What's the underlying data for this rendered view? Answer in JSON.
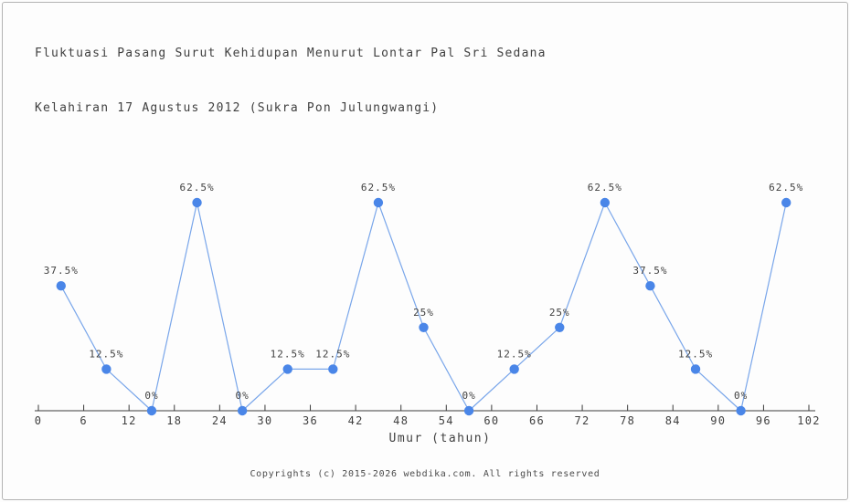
{
  "page": {
    "title_line1": "Fluktuasi Pasang Surut Kehidupan Menurut Lontar Pal Sri Sedana",
    "title_line2": "Kelahiran 17 Agustus 2012 (Sukra Pon Julungwangi)",
    "footer": "Copyrights (c) 2015-2026 webdika.com. All rights reserved"
  },
  "chart_data": {
    "type": "line",
    "title": "Fluktuasi Pasang Surut Kehidupan Menurut Lontar Pal Sri Sedana",
    "subtitle": "Kelahiran 17 Agustus 2012 (Sukra Pon Julungwangi)",
    "xlabel": "Umur (tahun)",
    "ylabel": "",
    "x": [
      3,
      9,
      15,
      21,
      27,
      33,
      39,
      45,
      51,
      57,
      63,
      69,
      75,
      81,
      87,
      93,
      99
    ],
    "values": [
      37.5,
      12.5,
      0,
      62.5,
      0,
      12.5,
      12.5,
      62.5,
      25,
      0,
      12.5,
      25,
      62.5,
      37.5,
      12.5,
      0,
      62.5
    ],
    "point_labels": [
      "37.5%",
      "12.5%",
      "0%",
      "62.5%",
      "0%",
      "12.5%",
      "12.5%",
      "62.5%",
      "25%",
      "0%",
      "12.5%",
      "25%",
      "62.5%",
      "37.5%",
      "12.5%",
      "0%",
      "62.5%"
    ],
    "x_ticks": [
      0,
      6,
      12,
      18,
      24,
      30,
      36,
      42,
      48,
      54,
      60,
      66,
      72,
      78,
      84,
      90,
      96,
      102
    ],
    "xlim": [
      0,
      102
    ],
    "ylim": [
      0,
      100
    ],
    "grid": false,
    "legend": null,
    "colors": {
      "marker": "#4a86e8",
      "line": "#79a6ea",
      "axis": "#3a3a3a",
      "tick_label": "#404040",
      "point_label": "#3f3f3f",
      "frame_border": "#b3b3b3",
      "background": "#fdfdfd"
    }
  }
}
